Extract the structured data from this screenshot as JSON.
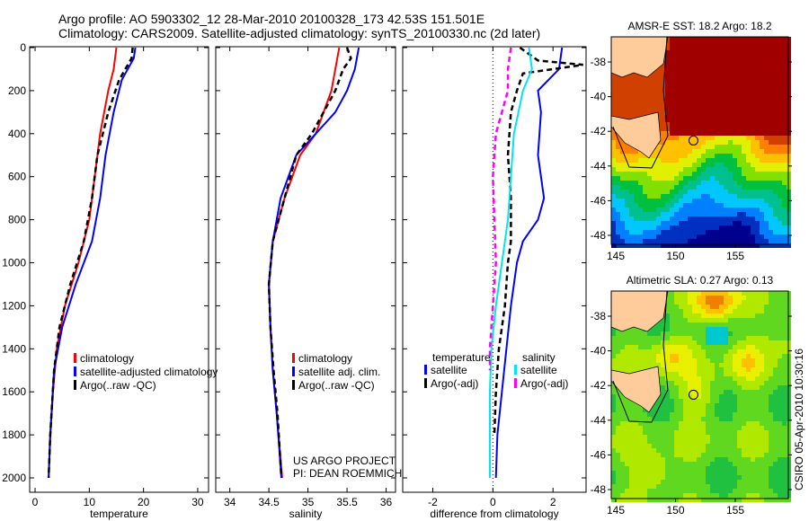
{
  "header": {
    "line1": "Argo profile: AO 5903302_12 28-Mar-2010 20100328_173 42.53S 151.501E",
    "line2": "Climatology: CARS2009. Satellite-adjusted climatology: synTS_20100330.nc (2d later)"
  },
  "colors": {
    "red": "#ff0000",
    "blue": "#0000ff",
    "black": "#000000",
    "cyan": "#00e5ee",
    "magenta": "#ff00ff",
    "land": "#fdcc9a"
  },
  "chart_data": [
    {
      "type": "line",
      "id": "temperature",
      "xlabel": "temperature",
      "ylabel": "",
      "xlim": [
        -1,
        32
      ],
      "ylim": [
        2050,
        0
      ],
      "xticks": [
        0,
        10,
        20,
        30
      ],
      "yticks": [
        0,
        200,
        400,
        600,
        800,
        1000,
        1200,
        1400,
        1600,
        1800,
        2000
      ],
      "legend": [
        "climatology",
        "satellite-adjusted climatology",
        "Argo(..raw -QC)"
      ],
      "series": [
        {
          "name": "climatology",
          "color": "#ff0000",
          "dash": false,
          "depth": [
            0,
            100,
            200,
            400,
            600,
            800,
            1000,
            1200,
            1400,
            1600,
            1800,
            2000
          ],
          "values": [
            15,
            14.5,
            13.5,
            12,
            11,
            10,
            8,
            5.5,
            4,
            3.3,
            2.8,
            2.5
          ]
        },
        {
          "name": "satellite-adjusted climatology",
          "color": "#0000ff",
          "dash": false,
          "depth": [
            0,
            50,
            150,
            300,
            500,
            700,
            900,
            1100,
            1300,
            1500,
            1800,
            2000
          ],
          "values": [
            18.5,
            18.2,
            16,
            14.5,
            13,
            12,
            10.5,
            7.5,
            5,
            3.5,
            2.8,
            2.5
          ]
        },
        {
          "name": "Argo(..raw -QC)",
          "color": "#000000",
          "dash": true,
          "depth": [
            0,
            50,
            150,
            300,
            500,
            700,
            900,
            1100,
            1300,
            1500,
            1800,
            2000
          ],
          "values": [
            18,
            17.8,
            15.5,
            13.5,
            11.5,
            10.5,
            9,
            6.5,
            4.5,
            3.5,
            2.8,
            2.5
          ]
        }
      ]
    },
    {
      "type": "line",
      "id": "salinity",
      "xlabel": "salinity",
      "xlim": [
        33.82,
        36.12
      ],
      "ylim": [
        2050,
        0
      ],
      "xticks": [
        34,
        34.5,
        35,
        35.5,
        36
      ],
      "legend": [
        "climatology",
        "satellite adj. clim.",
        "Argo(..raw -QC)"
      ],
      "annotation": [
        "US ARGO PROJECT",
        "PI: DEAN ROEMMICH"
      ],
      "series": [
        {
          "name": "climatology",
          "color": "#ff0000",
          "dash": false,
          "depth": [
            0,
            100,
            200,
            400,
            500,
            700,
            900,
            1100,
            1300,
            1500,
            1700,
            2000
          ],
          "values": [
            35.4,
            35.35,
            35.3,
            35.1,
            34.9,
            34.7,
            34.55,
            34.5,
            34.52,
            34.55,
            34.6,
            34.67
          ]
        },
        {
          "name": "satellite adj. clim.",
          "color": "#0000ff",
          "dash": false,
          "depth": [
            0,
            100,
            200,
            300,
            400,
            500,
            700,
            900,
            1100,
            1300,
            1500,
            1700,
            2000
          ],
          "values": [
            35.65,
            35.6,
            35.5,
            35.35,
            35.1,
            34.85,
            34.65,
            34.55,
            34.5,
            34.52,
            34.55,
            34.6,
            34.66
          ]
        },
        {
          "name": "Argo(..raw -QC)",
          "color": "#000000",
          "dash": true,
          "depth": [
            0,
            50,
            100,
            200,
            400,
            500,
            700,
            900,
            1100,
            1300,
            1500,
            1700,
            2000
          ],
          "values": [
            35.5,
            35.55,
            35.45,
            35.35,
            35.05,
            34.85,
            34.7,
            34.55,
            34.5,
            34.52,
            34.56,
            34.61,
            34.66
          ]
        }
      ]
    },
    {
      "type": "line",
      "id": "difference",
      "xlabel": "difference from climatology",
      "xlim": [
        -3,
        3.1
      ],
      "ylim": [
        2050,
        0
      ],
      "xticks": [
        -2,
        0,
        2
      ],
      "legend_titles": [
        "temperature",
        "salinity"
      ],
      "legend": [
        "satellite",
        "Argo(-adj)",
        "satellite",
        "Argo(-adj)"
      ],
      "series": [
        {
          "name": "temperature satellite",
          "color": "#0000ff",
          "dash": false,
          "depth": [
            0,
            100,
            200,
            300,
            500,
            600,
            700,
            800,
            900,
            1000,
            1200,
            1400,
            1600,
            1800,
            2000
          ],
          "values": [
            2.3,
            2.2,
            1.5,
            1.6,
            1.5,
            1.6,
            1.7,
            1.5,
            1.0,
            0.8,
            0.6,
            0.45,
            0.3,
            0.15,
            0.1
          ]
        },
        {
          "name": "temperature Argo(-adj)",
          "color": "#000000",
          "dash": true,
          "depth": [
            0,
            60,
            80,
            120,
            200,
            300,
            500,
            700,
            900,
            1000,
            1200,
            1400,
            1600,
            1800
          ],
          "values": [
            0.9,
            1.5,
            3.0,
            1.0,
            0.8,
            0.6,
            0.5,
            0.6,
            0.6,
            0.5,
            0.4,
            0.2,
            0.1,
            0.05
          ]
        },
        {
          "name": "salinity satellite",
          "color": "#00e5ee",
          "dash": false,
          "depth": [
            0,
            100,
            200,
            400,
            600,
            800,
            1000,
            1200,
            1400,
            1600,
            2000
          ],
          "values": [
            1.2,
            1.3,
            1.0,
            0.7,
            0.6,
            0.5,
            0.3,
            0.1,
            -0.05,
            -0.1,
            -0.1
          ]
        },
        {
          "name": "salinity Argo(-adj)",
          "color": "#ff00ff",
          "dash": true,
          "depth": [
            0,
            100,
            200,
            400,
            600,
            800,
            1000,
            1200,
            1400,
            1500
          ],
          "values": [
            0.6,
            0.5,
            0.5,
            0.1,
            0.0,
            0.05,
            0.1,
            0.0,
            -0.1,
            -0.1
          ]
        }
      ]
    },
    {
      "type": "heatmap",
      "id": "sst-map",
      "title": "AMSR-E SST: 18.2 Argo: 18.2",
      "xticks": [
        145,
        150,
        155
      ],
      "yticks": [
        -38,
        -40,
        -42,
        -44,
        -46,
        -48
      ],
      "marker": {
        "lon": 151.5,
        "lat": -42.53
      }
    },
    {
      "type": "heatmap",
      "id": "sla-map",
      "title": "Altimetric SLA: 0.27 Argo: 0.13",
      "xticks": [
        145,
        150,
        155
      ],
      "yticks": [
        -38,
        -40,
        -42,
        -44,
        -46,
        -48
      ],
      "marker": {
        "lon": 151.5,
        "lat": -42.53
      }
    }
  ],
  "footer": {
    "stamp": "CSIRO 05-Apr-2010 10:30:16"
  }
}
